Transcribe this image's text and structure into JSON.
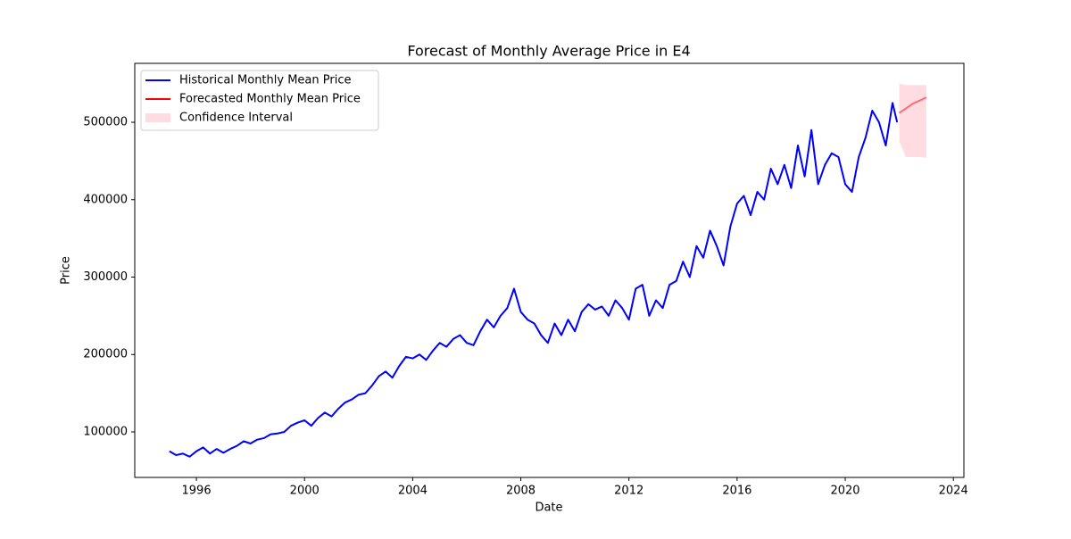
{
  "chart_data": {
    "type": "line",
    "title": "Forecast of Monthly Average Price in E4",
    "xlabel": "Date",
    "ylabel": "Price",
    "xlim": [
      1993.72,
      2024.39
    ],
    "ylim": [
      41200,
      576100
    ],
    "xticks": [
      1996,
      2000,
      2004,
      2008,
      2012,
      2016,
      2020,
      2024
    ],
    "yticks": [
      100000,
      200000,
      300000,
      400000,
      500000
    ],
    "legend": "upper left",
    "series": [
      {
        "name": "Historical Monthly Mean Price",
        "color": "#0000ff",
        "x": [
          1995,
          1995.25,
          1995.5,
          1995.75,
          1996,
          1996.25,
          1996.5,
          1996.75,
          1997,
          1997.25,
          1997.5,
          1997.75,
          1998,
          1998.25,
          1998.5,
          1998.75,
          1999,
          1999.25,
          1999.5,
          1999.75,
          2000,
          2000.25,
          2000.5,
          2000.75,
          2001,
          2001.25,
          2001.5,
          2001.75,
          2002,
          2002.25,
          2002.5,
          2002.75,
          2003,
          2003.25,
          2003.5,
          2003.75,
          2004,
          2004.25,
          2004.5,
          2004.75,
          2005,
          2005.25,
          2005.5,
          2005.75,
          2006,
          2006.25,
          2006.5,
          2006.75,
          2007,
          2007.25,
          2007.5,
          2007.75,
          2008,
          2008.25,
          2008.5,
          2008.75,
          2009,
          2009.25,
          2009.5,
          2009.75,
          2010,
          2010.25,
          2010.5,
          2010.75,
          2011,
          2011.25,
          2011.5,
          2011.75,
          2012,
          2012.25,
          2012.5,
          2012.75,
          2013,
          2013.25,
          2013.5,
          2013.75,
          2014,
          2014.25,
          2014.5,
          2014.75,
          2015,
          2015.25,
          2015.5,
          2015.75,
          2016,
          2016.25,
          2016.5,
          2016.75,
          2017,
          2017.25,
          2017.5,
          2017.75,
          2018,
          2018.25,
          2018.5,
          2018.75,
          2019,
          2019.25,
          2019.5,
          2019.75,
          2020,
          2020.25,
          2020.5,
          2020.75,
          2021,
          2021.25,
          2021.5,
          2021.75,
          2021.92
        ],
        "values": [
          75000,
          70000,
          72000,
          68000,
          75000,
          80000,
          72000,
          78000,
          73000,
          78000,
          82000,
          88000,
          85000,
          90000,
          92000,
          97000,
          98000,
          100000,
          108000,
          112000,
          115000,
          108000,
          118000,
          125000,
          120000,
          130000,
          138000,
          142000,
          148000,
          150000,
          160000,
          172000,
          178000,
          170000,
          185000,
          197000,
          195000,
          200000,
          193000,
          205000,
          215000,
          210000,
          220000,
          225000,
          215000,
          212000,
          230000,
          245000,
          235000,
          250000,
          260000,
          285000,
          255000,
          245000,
          240000,
          225000,
          215000,
          240000,
          225000,
          245000,
          230000,
          255000,
          265000,
          258000,
          262000,
          250000,
          270000,
          260000,
          245000,
          285000,
          290000,
          250000,
          270000,
          260000,
          290000,
          295000,
          320000,
          300000,
          340000,
          325000,
          360000,
          340000,
          315000,
          365000,
          395000,
          405000,
          380000,
          410000,
          400000,
          440000,
          420000,
          445000,
          415000,
          470000,
          430000,
          490000,
          420000,
          445000,
          460000,
          455000,
          420000,
          410000,
          455000,
          480000,
          515000,
          500000,
          470000,
          525000,
          500000
        ]
      },
      {
        "name": "Forecasted Monthly Mean Price",
        "color": "#ff0000",
        "x": [
          2022,
          2022.25,
          2022.5,
          2022.75,
          2023
        ],
        "values": [
          512000,
          518000,
          524000,
          528000,
          532000
        ]
      },
      {
        "name": "Confidence Interval",
        "color": "#ffc0cb",
        "kind": "band",
        "x": [
          2022,
          2022.25,
          2022.5,
          2022.75,
          2023
        ],
        "lower": [
          475000,
          455000,
          455000,
          455000,
          454000
        ],
        "upper": [
          550000,
          548000,
          548000,
          548000,
          548000
        ]
      }
    ]
  }
}
